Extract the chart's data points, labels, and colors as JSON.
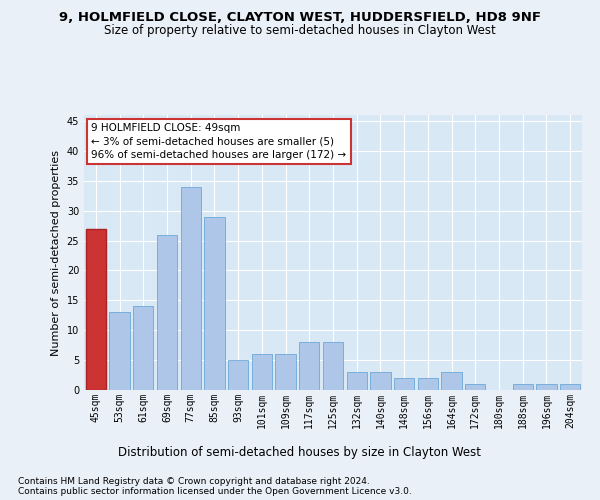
{
  "title1": "9, HOLMFIELD CLOSE, CLAYTON WEST, HUDDERSFIELD, HD8 9NF",
  "title2": "Size of property relative to semi-detached houses in Clayton West",
  "xlabel": "Distribution of semi-detached houses by size in Clayton West",
  "ylabel": "Number of semi-detached properties",
  "footer1": "Contains HM Land Registry data © Crown copyright and database right 2024.",
  "footer2": "Contains public sector information licensed under the Open Government Licence v3.0.",
  "annotation_line1": "9 HOLMFIELD CLOSE: 49sqm",
  "annotation_line2": "← 3% of semi-detached houses are smaller (5)",
  "annotation_line3": "96% of semi-detached houses are larger (172) →",
  "categories": [
    "45sqm",
    "53sqm",
    "61sqm",
    "69sqm",
    "77sqm",
    "85sqm",
    "93sqm",
    "101sqm",
    "109sqm",
    "117sqm",
    "125sqm",
    "132sqm",
    "140sqm",
    "148sqm",
    "156sqm",
    "164sqm",
    "172sqm",
    "180sqm",
    "188sqm",
    "196sqm",
    "204sqm"
  ],
  "values": [
    27,
    13,
    14,
    26,
    34,
    29,
    5,
    6,
    6,
    8,
    8,
    3,
    3,
    2,
    2,
    3,
    1,
    0,
    1,
    1,
    1
  ],
  "highlight_index": 0,
  "bar_color": "#aec6e8",
  "bar_edge_color": "#5a9fd4",
  "highlight_color": "#cc3333",
  "highlight_edge_color": "#aa2222",
  "annotation_box_color": "white",
  "annotation_box_edge": "#cc3333",
  "ylim": [
    0,
    46
  ],
  "yticks": [
    0,
    5,
    10,
    15,
    20,
    25,
    30,
    35,
    40,
    45
  ],
  "bg_color": "#eaf0f8",
  "plot_bg_color": "#d8e8f5",
  "grid_color": "white",
  "title1_fontsize": 9.5,
  "title2_fontsize": 8.5,
  "xlabel_fontsize": 8.5,
  "ylabel_fontsize": 8,
  "tick_fontsize": 7,
  "footer_fontsize": 6.5,
  "annotation_fontsize": 7.5
}
